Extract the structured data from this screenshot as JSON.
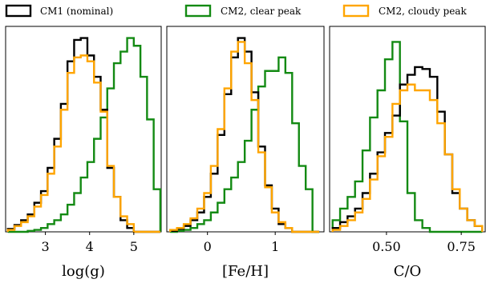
{
  "colors": {
    "cm1": "#000000",
    "cm2_clear": "#138a13",
    "cm2_cloudy": "#ffa500"
  },
  "legend": [
    {
      "label": "CM1 (nominal)",
      "series": "cm1",
      "color": "#000000"
    },
    {
      "label": "CM2, clear peak",
      "series": "cm2_clear",
      "color": "#138a13"
    },
    {
      "label": "CM2, cloudy peak",
      "series": "cm2_cloudy",
      "color": "#ffa500"
    }
  ],
  "chart_data": [
    {
      "type": "histogram",
      "xlabel": "log(g)",
      "ylabel": "",
      "xlim": [
        2.1,
        5.62
      ],
      "ylim": [
        0,
        1.06
      ],
      "grid": false,
      "xticks": [
        3,
        4,
        5
      ],
      "xtick_labels": [
        "3",
        "4",
        "5"
      ],
      "bin_edges": [
        2.15,
        2.3,
        2.45,
        2.6,
        2.75,
        2.9,
        3.05,
        3.2,
        3.35,
        3.5,
        3.65,
        3.8,
        3.95,
        4.1,
        4.25,
        4.4,
        4.55,
        4.7,
        4.85,
        5.0,
        5.15,
        5.3,
        5.45,
        5.6
      ],
      "series": [
        {
          "name": "CM1 (nominal)",
          "key": "cm1",
          "values": [
            0.015,
            0.035,
            0.06,
            0.09,
            0.15,
            0.21,
            0.33,
            0.48,
            0.66,
            0.88,
            0.99,
            1.0,
            0.91,
            0.8,
            0.63,
            0.33,
            0.18,
            0.06,
            0.02,
            0.0,
            0.0,
            0.0,
            0.0
          ]
        },
        {
          "name": "CM2, clear peak",
          "key": "cm2_clear",
          "values": [
            0.0,
            0.0,
            0.0,
            0.005,
            0.01,
            0.02,
            0.04,
            0.06,
            0.09,
            0.14,
            0.2,
            0.28,
            0.36,
            0.48,
            0.59,
            0.74,
            0.87,
            0.93,
            1.0,
            0.96,
            0.8,
            0.58,
            0.22
          ]
        },
        {
          "name": "CM2, cloudy peak",
          "key": "cm2_cloudy",
          "values": [
            0.01,
            0.03,
            0.05,
            0.08,
            0.13,
            0.19,
            0.3,
            0.44,
            0.63,
            0.82,
            0.9,
            0.91,
            0.88,
            0.77,
            0.62,
            0.34,
            0.18,
            0.08,
            0.04,
            0.0,
            0.0,
            0.0,
            0.0
          ]
        }
      ]
    },
    {
      "type": "histogram",
      "xlabel": "[Fe/H]",
      "ylabel": "",
      "xlim": [
        -0.6,
        1.72
      ],
      "ylim": [
        0,
        1.06
      ],
      "grid": false,
      "xticks": [
        0,
        1
      ],
      "xtick_labels": [
        "0",
        "1"
      ],
      "bin_edges": [
        -0.55,
        -0.45,
        -0.35,
        -0.25,
        -0.15,
        -0.05,
        0.05,
        0.15,
        0.25,
        0.35,
        0.45,
        0.55,
        0.65,
        0.75,
        0.85,
        0.95,
        1.05,
        1.15,
        1.25,
        1.35,
        1.45,
        1.55,
        1.65
      ],
      "series": [
        {
          "name": "CM1 (nominal)",
          "key": "cm1",
          "values": [
            0.005,
            0.015,
            0.03,
            0.06,
            0.1,
            0.18,
            0.3,
            0.5,
            0.71,
            0.9,
            1.0,
            0.93,
            0.72,
            0.44,
            0.24,
            0.12,
            0.04,
            0.02,
            0.0,
            0.0,
            0.0,
            0.0
          ]
        },
        {
          "name": "CM2, clear peak",
          "key": "cm2_clear",
          "values": [
            0.0,
            0.005,
            0.01,
            0.02,
            0.04,
            0.06,
            0.1,
            0.15,
            0.22,
            0.28,
            0.36,
            0.47,
            0.63,
            0.75,
            0.83,
            0.83,
            0.9,
            0.82,
            0.56,
            0.34,
            0.22,
            0.0
          ]
        },
        {
          "name": "CM2, cloudy peak",
          "key": "cm2_cloudy",
          "values": [
            0.01,
            0.02,
            0.04,
            0.07,
            0.12,
            0.2,
            0.34,
            0.53,
            0.74,
            0.93,
            0.98,
            0.87,
            0.68,
            0.41,
            0.23,
            0.1,
            0.05,
            0.02,
            0.0,
            0.0,
            0.0,
            0.0
          ]
        }
      ]
    },
    {
      "type": "histogram",
      "xlabel": "C/O",
      "ylabel": "",
      "xlim": [
        0.31,
        0.83
      ],
      "ylim": [
        0,
        1.06
      ],
      "grid": false,
      "xticks": [
        0.5,
        0.75
      ],
      "xtick_labels": [
        "0.50",
        "0.75"
      ],
      "bin_edges": [
        0.32,
        0.345,
        0.37,
        0.395,
        0.42,
        0.445,
        0.47,
        0.495,
        0.52,
        0.545,
        0.57,
        0.595,
        0.62,
        0.645,
        0.67,
        0.695,
        0.72,
        0.745,
        0.77,
        0.795,
        0.82
      ],
      "series": [
        {
          "name": "CM1 (nominal)",
          "key": "cm1",
          "values": [
            0.02,
            0.05,
            0.08,
            0.12,
            0.2,
            0.3,
            0.41,
            0.51,
            0.6,
            0.76,
            0.81,
            0.85,
            0.84,
            0.8,
            0.62,
            0.4,
            0.2,
            0.12,
            0.06,
            0.03
          ]
        },
        {
          "name": "CM2, clear peak",
          "key": "cm2_clear",
          "values": [
            0.06,
            0.12,
            0.18,
            0.26,
            0.42,
            0.59,
            0.73,
            0.89,
            0.98,
            0.57,
            0.2,
            0.06,
            0.02,
            0.0,
            0.0,
            0.0,
            0.0,
            0.0,
            0.0,
            0.0
          ]
        },
        {
          "name": "CM2, cloudy peak",
          "key": "cm2_cloudy",
          "values": [
            0.01,
            0.03,
            0.06,
            0.1,
            0.17,
            0.27,
            0.39,
            0.49,
            0.66,
            0.73,
            0.76,
            0.73,
            0.73,
            0.68,
            0.56,
            0.4,
            0.22,
            0.12,
            0.06,
            0.03
          ]
        }
      ]
    }
  ]
}
